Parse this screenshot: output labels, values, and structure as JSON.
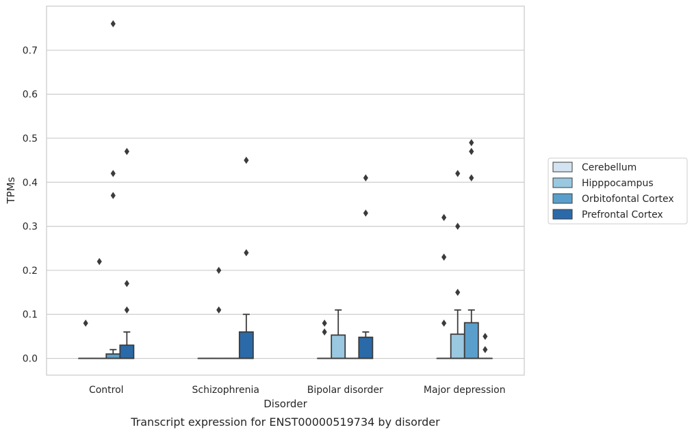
{
  "chart_data": {
    "type": "box",
    "caption": "Transcript expression for ENST00000519734 by disorder",
    "xlabel": "Disorder",
    "ylabel": "TPMs",
    "ylim": [
      -0.038,
      0.8
    ],
    "yticks": [
      0.0,
      0.1,
      0.2,
      0.3,
      0.4,
      0.5,
      0.6,
      0.7
    ],
    "ytick_labels": [
      "0.0",
      "0.1",
      "0.2",
      "0.3",
      "0.4",
      "0.5",
      "0.6",
      "0.7"
    ],
    "grid": "horizontal",
    "legend_position": "right",
    "categories": [
      "Control",
      "Schizophrenia",
      "Bipolar disorder",
      "Major depression"
    ],
    "series": [
      {
        "name": "Cerebellum",
        "color": "#d3e3f1",
        "boxes": [
          {
            "q1": 0,
            "median": 0,
            "q3": 0,
            "whisker_low": 0,
            "whisker_high": 0,
            "outliers": [
              0.08
            ]
          },
          {
            "q1": 0,
            "median": 0,
            "q3": 0,
            "whisker_low": 0,
            "whisker_high": 0,
            "outliers": []
          },
          {
            "q1": 0,
            "median": 0,
            "q3": 0,
            "whisker_low": 0,
            "whisker_high": 0,
            "outliers": [
              0.08,
              0.06
            ]
          },
          {
            "q1": 0,
            "median": 0,
            "q3": 0,
            "whisker_low": 0,
            "whisker_high": 0,
            "outliers": [
              0.32,
              0.23,
              0.08
            ]
          }
        ]
      },
      {
        "name": "Hipppocampus",
        "color": "#9ac8e0",
        "boxes": [
          {
            "q1": 0,
            "median": 0,
            "q3": 0,
            "whisker_low": 0,
            "whisker_high": 0,
            "outliers": [
              0.22
            ]
          },
          {
            "q1": 0,
            "median": 0,
            "q3": 0,
            "whisker_low": 0,
            "whisker_high": 0,
            "outliers": [
              0.2,
              0.11
            ]
          },
          {
            "q1": 0,
            "median": 0,
            "q3": 0.053,
            "whisker_low": 0,
            "whisker_high": 0.11,
            "outliers": []
          },
          {
            "q1": 0,
            "median": 0,
            "q3": 0.055,
            "whisker_low": 0,
            "whisker_high": 0.11,
            "outliers": [
              0.42,
              0.3,
              0.15
            ]
          }
        ]
      },
      {
        "name": "Orbitofontal Cortex",
        "color": "#5a9fcb",
        "boxes": [
          {
            "q1": 0,
            "median": 0,
            "q3": 0.01,
            "whisker_low": 0,
            "whisker_high": 0.02,
            "outliers": [
              0.76,
              0.42,
              0.37
            ]
          },
          {
            "q1": 0,
            "median": 0,
            "q3": 0,
            "whisker_low": 0,
            "whisker_high": 0,
            "outliers": []
          },
          {
            "q1": 0,
            "median": 0,
            "q3": 0,
            "whisker_low": 0,
            "whisker_high": 0,
            "outliers": []
          },
          {
            "q1": 0,
            "median": 0,
            "q3": 0.081,
            "whisker_low": 0,
            "whisker_high": 0.11,
            "outliers": [
              0.49,
              0.47,
              0.41
            ]
          }
        ]
      },
      {
        "name": "Prefrontal Cortex",
        "color": "#2b6aa8",
        "boxes": [
          {
            "q1": 0,
            "median": 0,
            "q3": 0.03,
            "whisker_low": 0,
            "whisker_high": 0.06,
            "outliers": [
              0.47,
              0.17,
              0.11
            ]
          },
          {
            "q1": 0,
            "median": 0,
            "q3": 0.06,
            "whisker_low": 0,
            "whisker_high": 0.1,
            "outliers": [
              0.45,
              0.24
            ]
          },
          {
            "q1": 0,
            "median": 0,
            "q3": 0.048,
            "whisker_low": 0,
            "whisker_high": 0.06,
            "outliers": [
              0.41,
              0.33
            ]
          },
          {
            "q1": 0,
            "median": 0,
            "q3": 0,
            "whisker_low": 0,
            "whisker_high": 0,
            "outliers": [
              0.05,
              0.02
            ]
          }
        ]
      }
    ]
  }
}
